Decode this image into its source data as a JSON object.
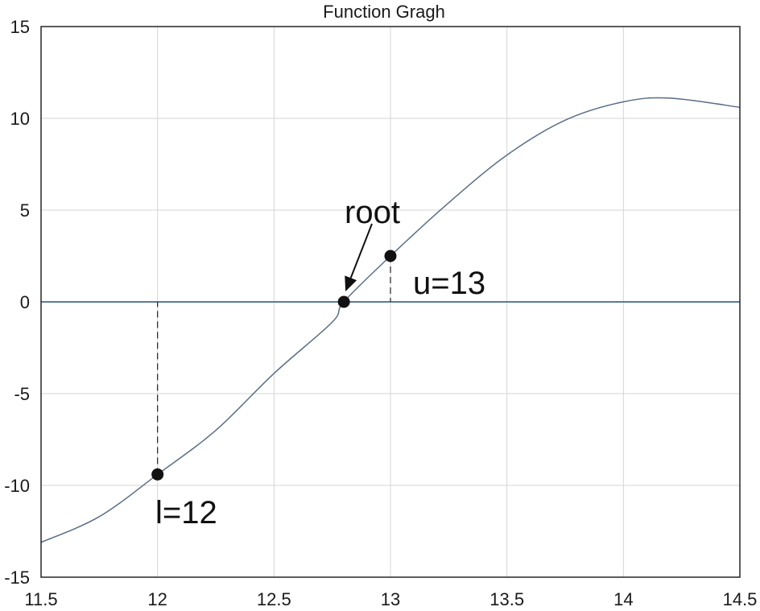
{
  "chart_data": {
    "type": "line",
    "title": "Function Gragh",
    "xlabel": "",
    "ylabel": "",
    "xlim": [
      11.5,
      14.5
    ],
    "ylim": [
      -15,
      15
    ],
    "xticks": [
      11.5,
      12,
      12.5,
      13,
      13.5,
      14,
      14.5
    ],
    "xtick_labels": [
      "11.5",
      "12",
      "12.5",
      "13",
      "13.5",
      "14",
      "14.5"
    ],
    "yticks": [
      -15,
      -10,
      -5,
      0,
      5,
      10,
      15
    ],
    "ytick_labels": [
      "-15",
      "-10",
      "-5",
      "0",
      "5",
      "10",
      "15"
    ],
    "grid": true,
    "series": [
      {
        "x": [
          11.5,
          11.75,
          12.0,
          12.25,
          12.5,
          12.75,
          12.8,
          13.0,
          13.25,
          13.5,
          13.75,
          14.0,
          14.2,
          14.5
        ],
        "y": [
          -13.1,
          -11.7,
          -9.4,
          -7.0,
          -3.9,
          -1.1,
          0.0,
          2.5,
          5.4,
          8.0,
          9.9,
          10.9,
          11.1,
          10.6
        ]
      }
    ],
    "reference_lines": [
      {
        "axis": "y",
        "value": 0
      }
    ],
    "points": [
      {
        "x": 12.0,
        "y": -9.4,
        "label": "l=12"
      },
      {
        "x": 12.8,
        "y": 0.0,
        "label": "root"
      },
      {
        "x": 13.0,
        "y": 2.5,
        "label": "u=13"
      }
    ],
    "annotations": {
      "l_label": "l=12",
      "u_label": "u=13",
      "root_label": "root"
    },
    "colors": {
      "curve": "#5a6e85",
      "zero_line": "#5a7aa0",
      "grid": "#d4d4d4",
      "axes": "#262626",
      "points": "#111111"
    }
  }
}
